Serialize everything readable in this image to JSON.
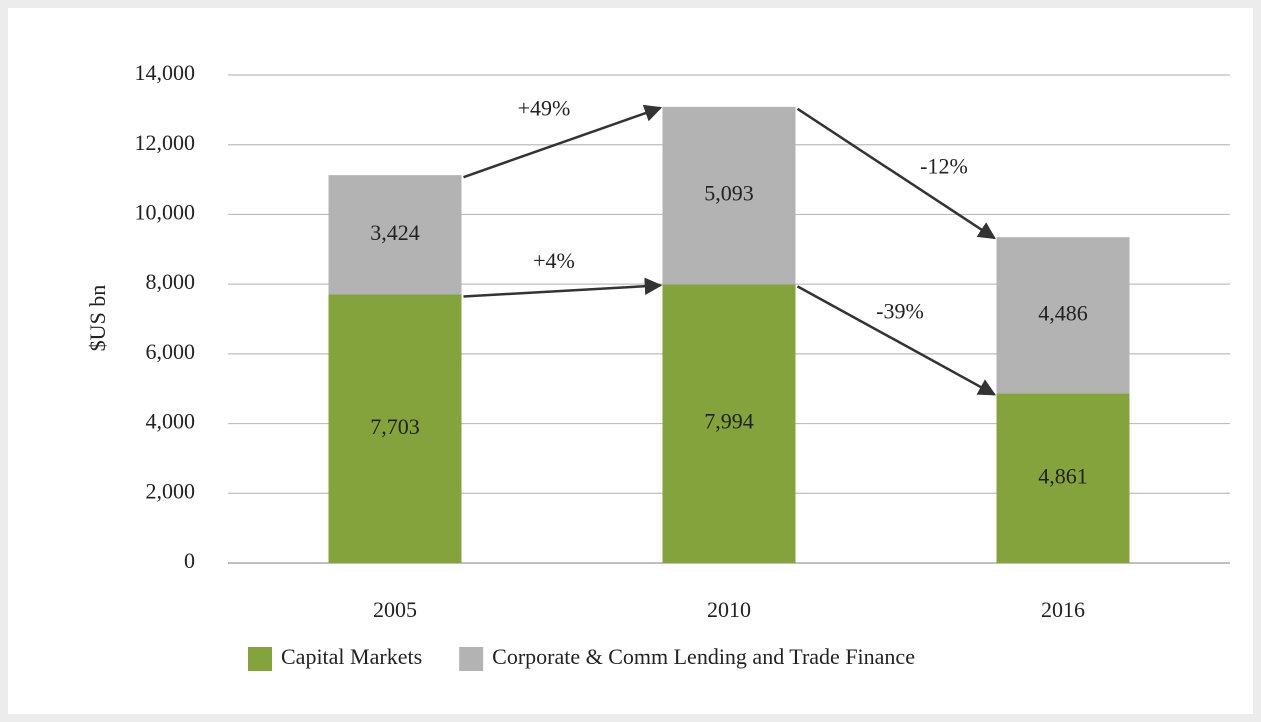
{
  "chart_data": {
    "type": "stacked-bar",
    "y_label": "$US bn",
    "categories": [
      "2005",
      "2010",
      "2016"
    ],
    "series": [
      {
        "name": "Capital Markets",
        "color": "#84a33d",
        "values": [
          7703,
          7994,
          4861
        ],
        "value_labels": [
          "7,703",
          "7,994",
          "4,861"
        ]
      },
      {
        "name": "Corporate & Comm Lending and Trade Finance",
        "color": "#b3b3b3",
        "values": [
          3424,
          5093,
          4486
        ],
        "value_labels": [
          "3,424",
          "5,093",
          "4,486"
        ]
      }
    ],
    "ylim": [
      0,
      14000
    ],
    "yticks": [
      0,
      {
        "value": 2000,
        "label": "2,000"
      },
      {
        "value": 4000,
        "label": "4,000"
      },
      {
        "value": 6000,
        "label": "6,000"
      },
      {
        "value": 8000,
        "label": "8,000"
      },
      {
        "value": 10000,
        "label": "10,000"
      },
      {
        "value": 12000,
        "label": "12,000"
      },
      {
        "value": 14000,
        "label": "14,000"
      }
    ],
    "grid": true,
    "legend": "bottom",
    "annotations": [
      "+49%",
      "-12%",
      "+4%",
      "-39%"
    ]
  }
}
